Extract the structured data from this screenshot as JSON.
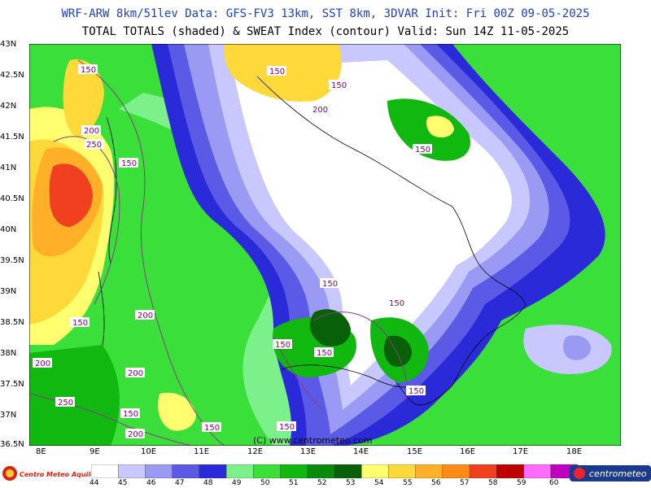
{
  "header": {
    "title1": "WRF-ARW 8km/51lev  Data: GFS-FV3 13km, SST 8km, 3DVAR  Init: Fri 00Z 09-05-2025",
    "title2": "TOTAL TOTALS (shaded) & SWEAT Index (contour)  Valid: Sun 14Z 11-05-2025"
  },
  "lat_labels": [
    "43N",
    "42.5N",
    "42N",
    "41.5N",
    "41N",
    "40.5N",
    "40N",
    "39.5N",
    "39N",
    "38.5N",
    "38N",
    "37.5N",
    "37N",
    "36.5N"
  ],
  "lon_labels": [
    "8E",
    "9E",
    "10E",
    "11E",
    "12E",
    "13E",
    "14E",
    "15E",
    "16E",
    "17E",
    "18E"
  ],
  "contour_labels": [
    "150",
    "150",
    "150",
    "200",
    "200",
    "250",
    "150",
    "150",
    "150",
    "150",
    "150",
    "150",
    "150",
    "200",
    "150",
    "200",
    "200",
    "250",
    "150",
    "200",
    "150",
    "150"
  ],
  "watermark": "(C) www.centrometeo.com",
  "colorbar": {
    "labels": [
      "44",
      "45",
      "46",
      "47",
      "48",
      "49",
      "50",
      "51",
      "52",
      "53",
      "54",
      "55",
      "56",
      "57",
      "58",
      "59",
      "60"
    ],
    "colors": [
      "#ffffff",
      "#c8c8ff",
      "#9a9af5",
      "#5a5ae6",
      "#2a2ad8",
      "#7cf08a",
      "#3adf3a",
      "#10b810",
      "#0a8a0a",
      "#086008",
      "#ffff70",
      "#ffd83a",
      "#ffb028",
      "#ff8a18",
      "#f04020",
      "#c00000",
      "#ff6cff",
      "#c000c0"
    ]
  },
  "logos": {
    "left": "Centro Meteo Aquileia",
    "right": "centrometeo"
  }
}
